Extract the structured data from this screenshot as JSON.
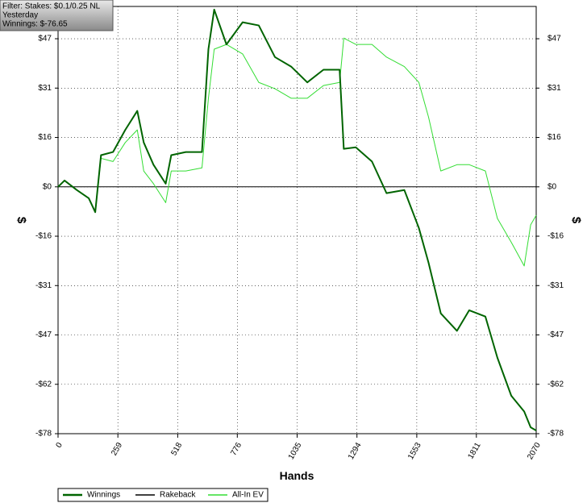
{
  "chart_data": {
    "type": "line",
    "filter_box": [
      "Filter: Stakes: $0.1/0.25 NL",
      "Yesterday",
      "Winnings: $-76.65"
    ],
    "xlabel": "Hands",
    "ylabel": "$",
    "x": [
      0,
      28,
      81,
      133,
      161,
      186,
      238,
      291,
      343,
      371,
      413,
      466,
      490,
      553,
      623,
      651,
      676,
      729,
      799,
      869,
      939,
      1009,
      1079,
      1149,
      1219,
      1237,
      1289,
      1359,
      1422,
      1499,
      1562,
      1604,
      1657,
      1727,
      1780,
      1850,
      1902,
      1962,
      2018,
      2046,
      2070
    ],
    "series": [
      {
        "name": "Winnings",
        "color": "#006400",
        "width": 2,
        "values": [
          0,
          2,
          -1,
          -3.6,
          -8,
          10,
          11,
          18,
          24,
          14,
          7,
          1,
          10,
          11,
          11,
          43.5,
          56,
          45,
          52,
          51,
          41,
          38,
          33,
          37,
          37,
          12,
          12.5,
          8,
          -2,
          -1,
          -13,
          -24,
          -40,
          -45.5,
          -39,
          -41,
          -54,
          -66,
          -71,
          -76,
          -77
        ]
      },
      {
        "name": "Rakeback",
        "color": "#000000",
        "width": 1,
        "values": [
          0,
          0,
          0,
          0,
          0,
          0,
          0,
          0,
          0,
          0,
          0,
          0,
          0,
          0,
          0,
          0,
          0,
          0,
          0,
          0,
          0,
          0,
          0,
          0,
          0,
          0,
          0,
          0,
          0,
          0,
          0,
          0,
          0,
          0,
          0,
          0,
          0,
          0,
          0,
          0,
          0
        ]
      },
      {
        "name": "All-In EV",
        "color": "#33dd33",
        "width": 1,
        "values": [
          0,
          2,
          -1,
          -3.6,
          -8,
          9,
          8,
          14,
          18,
          5,
          1,
          -5,
          5,
          5,
          6,
          28,
          43.5,
          45,
          42,
          33,
          31,
          28,
          28,
          32,
          33,
          47,
          45,
          45,
          41,
          38,
          33,
          22,
          5,
          7,
          7,
          5,
          -10,
          -17.5,
          -25,
          -12,
          -9
        ]
      }
    ],
    "xlim": [
      0,
      2070
    ],
    "xticks": [
      0,
      259,
      518,
      776,
      1035,
      1294,
      1553,
      1811,
      2070
    ],
    "ylim": [
      -78,
      57
    ],
    "yticks": [
      {
        "value": -78,
        "label": "-$78"
      },
      {
        "value": -62.4,
        "label": "-$62"
      },
      {
        "value": -46.8,
        "label": "-$47"
      },
      {
        "value": -31.2,
        "label": "-$31"
      },
      {
        "value": -15.6,
        "label": "-$16"
      },
      {
        "value": 0,
        "label": "$0"
      },
      {
        "value": 15.6,
        "label": "$16"
      },
      {
        "value": 31.2,
        "label": "$31"
      },
      {
        "value": 46.8,
        "label": "$47"
      }
    ],
    "grid": true
  }
}
